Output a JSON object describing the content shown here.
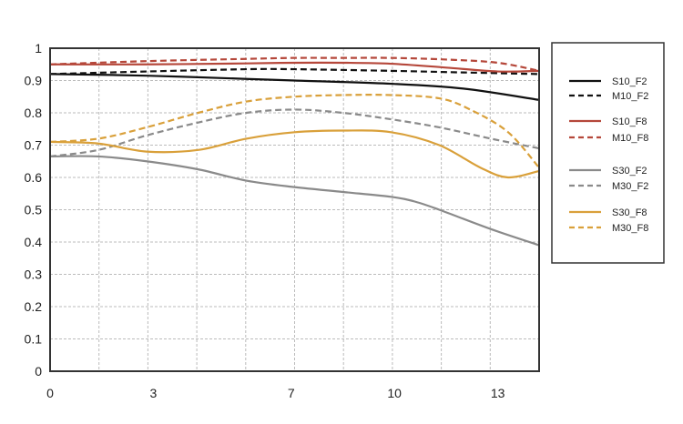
{
  "chart_data": {
    "type": "line",
    "title": "",
    "xlabel": "",
    "ylabel": "",
    "xlim": [
      0,
      14.2
    ],
    "ylim": [
      0,
      1
    ],
    "grid": true,
    "legend_position": "right",
    "x_ticks": [
      "0",
      "3",
      "7",
      "10",
      "13"
    ],
    "x_tick_values": [
      0,
      3,
      7,
      10,
      13
    ],
    "y_ticks": [
      "0",
      "0.1",
      "0.2",
      "0.3",
      "0.4",
      "0.5",
      "0.6",
      "0.7",
      "0.8",
      "0.9",
      "1"
    ],
    "y_tick_values": [
      0,
      0.1,
      0.2,
      0.3,
      0.4,
      0.5,
      0.6,
      0.7,
      0.8,
      0.9,
      1
    ],
    "series": [
      {
        "name": "S10_F2",
        "color": "#111111",
        "dashed": false,
        "x": [
          0,
          2.8,
          5.7,
          7.1,
          9.9,
          12,
          14.2
        ],
        "y": [
          0.92,
          0.915,
          0.905,
          0.9,
          0.89,
          0.875,
          0.84
        ]
      },
      {
        "name": "M10_F2",
        "color": "#111111",
        "dashed": true,
        "x": [
          0,
          2.8,
          5.7,
          7.1,
          9.9,
          12,
          14.2
        ],
        "y": [
          0.92,
          0.928,
          0.935,
          0.935,
          0.93,
          0.925,
          0.92
        ]
      },
      {
        "name": "S10_F8",
        "color": "#b5473a",
        "dashed": false,
        "x": [
          0,
          2.8,
          5.7,
          7.1,
          8.5,
          9.9,
          11.5,
          13,
          14.2
        ],
        "y": [
          0.95,
          0.95,
          0.953,
          0.955,
          0.955,
          0.952,
          0.94,
          0.928,
          0.93
        ]
      },
      {
        "name": "M10_F8",
        "color": "#b5473a",
        "dashed": true,
        "x": [
          0,
          2.8,
          5.7,
          7.1,
          8.5,
          9.9,
          11.5,
          13,
          14.2
        ],
        "y": [
          0.95,
          0.96,
          0.967,
          0.97,
          0.97,
          0.97,
          0.965,
          0.955,
          0.93
        ]
      },
      {
        "name": "S30_F2",
        "color": "#8a8a8a",
        "dashed": false,
        "x": [
          0,
          1.4,
          2.8,
          4.3,
          5.7,
          7.1,
          8.5,
          9.9,
          10.6,
          11.3,
          12.8,
          14.2
        ],
        "y": [
          0.665,
          0.665,
          0.65,
          0.625,
          0.59,
          0.57,
          0.555,
          0.54,
          0.525,
          0.5,
          0.44,
          0.39
        ]
      },
      {
        "name": "M30_F2",
        "color": "#8a8a8a",
        "dashed": true,
        "x": [
          0,
          1.4,
          2.8,
          4.3,
          5.7,
          7.1,
          8.5,
          9.9,
          11.3,
          12.8,
          14.2
        ],
        "y": [
          0.665,
          0.685,
          0.73,
          0.77,
          0.8,
          0.81,
          0.8,
          0.78,
          0.755,
          0.72,
          0.69
        ]
      },
      {
        "name": "S30_F8",
        "color": "#d9a03a",
        "dashed": false,
        "x": [
          0,
          1.4,
          2.8,
          4.3,
          5.7,
          7.1,
          8.5,
          9.9,
          11.3,
          12.5,
          13.3,
          14.2
        ],
        "y": [
          0.71,
          0.705,
          0.68,
          0.685,
          0.72,
          0.74,
          0.745,
          0.74,
          0.7,
          0.63,
          0.6,
          0.62
        ]
      },
      {
        "name": "M30_F8",
        "color": "#d9a03a",
        "dashed": true,
        "x": [
          0,
          1.4,
          2.8,
          4.3,
          5.7,
          7.1,
          8.5,
          9.9,
          11.3,
          12.2,
          13.3,
          14.2
        ],
        "y": [
          0.71,
          0.72,
          0.755,
          0.8,
          0.835,
          0.85,
          0.855,
          0.855,
          0.845,
          0.81,
          0.74,
          0.63
        ]
      }
    ]
  }
}
